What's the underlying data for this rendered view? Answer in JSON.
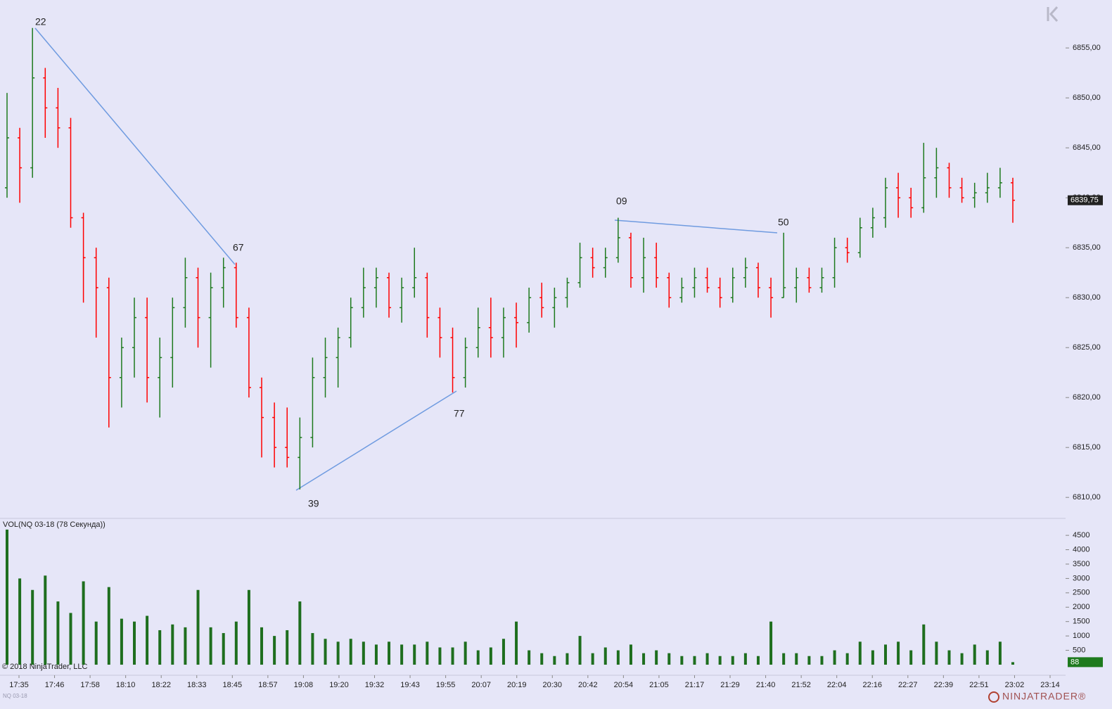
{
  "chart_data": [
    {
      "type": "ohlc",
      "open": [
        6841,
        6846,
        6843,
        6852,
        6849,
        6847,
        6838,
        6834,
        6831,
        6822,
        6825,
        6828,
        6822,
        6824,
        6829,
        6832,
        6828,
        6831,
        6833,
        6828,
        6821,
        6818,
        6815,
        6814,
        6816,
        6822,
        6824,
        6826,
        6829,
        6831,
        6832,
        6829,
        6831,
        6832,
        6828,
        6826,
        6822,
        6825,
        6827,
        6826,
        6828,
        6827.5,
        6830,
        6829,
        6830,
        6831.5,
        6834,
        6833,
        6834,
        6836,
        6832,
        6834,
        6832,
        6830,
        6831,
        6832,
        6831,
        6830,
        6832,
        6833,
        6831,
        6830,
        6831,
        6832,
        6831,
        6832,
        6835,
        6834.5,
        6837,
        6838,
        6841,
        6840,
        6839,
        6842,
        6843,
        6841,
        6840,
        6840.5,
        6841,
        6841.5
      ],
      "high": [
        6850.5,
        6847,
        6857,
        6853,
        6851,
        6848,
        6838.5,
        6835,
        6832,
        6826,
        6830,
        6830,
        6826,
        6830,
        6834,
        6833,
        6832.5,
        6834,
        6833.5,
        6829,
        6822,
        6819.5,
        6819,
        6818,
        6824,
        6826,
        6827,
        6830,
        6833,
        6833,
        6832.5,
        6832,
        6835,
        6832.5,
        6829,
        6827,
        6826,
        6829,
        6830,
        6829,
        6829.5,
        6831,
        6831.5,
        6831,
        6832,
        6835.5,
        6835,
        6835,
        6838,
        6836.5,
        6836,
        6835.5,
        6832.5,
        6832,
        6833,
        6833,
        6832,
        6833,
        6834,
        6833.5,
        6832,
        6836.5,
        6833,
        6833,
        6833,
        6836,
        6836,
        6838,
        6839,
        6842,
        6842.5,
        6841,
        6845.5,
        6845,
        6843.5,
        6842,
        6841.5,
        6842.5,
        6843,
        6842
      ],
      "low": [
        6840,
        6839.5,
        6842,
        6846,
        6845,
        6837,
        6829.5,
        6826,
        6817,
        6819,
        6822,
        6819.5,
        6818,
        6821,
        6827,
        6825,
        6823,
        6829,
        6827,
        6820,
        6814,
        6813,
        6813,
        6810.8,
        6815,
        6820,
        6821,
        6825,
        6828,
        6829,
        6828,
        6827.5,
        6830,
        6826,
        6824,
        6820.5,
        6821,
        6824,
        6824,
        6824,
        6825,
        6826.5,
        6828,
        6827,
        6829,
        6831,
        6832,
        6832,
        6833.5,
        6831,
        6830.5,
        6831,
        6829,
        6829.5,
        6830,
        6830.5,
        6829,
        6829.5,
        6831,
        6830,
        6828,
        6830,
        6829.5,
        6830.5,
        6830.5,
        6831,
        6833.5,
        6834,
        6836,
        6837,
        6838,
        6838,
        6838.5,
        6840,
        6840,
        6839.5,
        6839,
        6839.5,
        6840,
        6837.5
      ],
      "close": [
        6846,
        6843,
        6852,
        6849,
        6847,
        6838,
        6834,
        6831,
        6822,
        6825,
        6828,
        6822,
        6824,
        6829,
        6832,
        6828,
        6831,
        6833,
        6828,
        6821,
        6818,
        6815,
        6814,
        6816,
        6822,
        6824,
        6826,
        6829,
        6831,
        6832,
        6829,
        6831,
        6832,
        6828,
        6826,
        6822,
        6825,
        6827,
        6826,
        6828,
        6827.5,
        6830,
        6829,
        6830,
        6831.5,
        6834,
        6833,
        6834,
        6836,
        6832,
        6834,
        6832,
        6830,
        6831,
        6832,
        6831,
        6830,
        6832,
        6833,
        6831,
        6830,
        6831,
        6832,
        6831,
        6832,
        6835,
        6834.5,
        6837,
        6838,
        6841,
        6840,
        6839,
        6842,
        6843,
        6841,
        6840,
        6840.5,
        6841,
        6841.5,
        6839.75
      ],
      "up_color": "#1e7a1e",
      "down_color": "#ff0000",
      "ylim": [
        6807.9,
        6859.8
      ],
      "yticks": [
        {
          "value": 6810,
          "label": "6810,00"
        },
        {
          "value": 6815,
          "label": "6815,00"
        },
        {
          "value": 6820,
          "label": "6820,00"
        },
        {
          "value": 6825,
          "label": "6825,00"
        },
        {
          "value": 6830,
          "label": "6830,00"
        },
        {
          "value": 6835,
          "label": "6835,00"
        },
        {
          "value": 6840,
          "label": "6840,00"
        },
        {
          "value": 6845,
          "label": "6845,00"
        },
        {
          "value": 6850,
          "label": "6850,00"
        },
        {
          "value": 6855,
          "label": "6855,00"
        }
      ],
      "last_value": 6839.75,
      "last_value_label": "6839,75",
      "annotations": [
        "22",
        "67",
        "39",
        "77",
        "09",
        "50"
      ]
    },
    {
      "type": "bar",
      "title": "VOL(NQ 03-18 (78 Секунда))",
      "color": "#1e6e1e",
      "values": [
        4700,
        3000,
        2600,
        3100,
        2200,
        1800,
        2900,
        1500,
        2700,
        1600,
        1500,
        1700,
        1200,
        1400,
        1300,
        2600,
        1300,
        1100,
        1500,
        2600,
        1300,
        1000,
        1200,
        2200,
        1100,
        900,
        800,
        900,
        800,
        700,
        800,
        700,
        700,
        800,
        600,
        600,
        800,
        500,
        600,
        900,
        1500,
        500,
        400,
        300,
        400,
        1000,
        400,
        600,
        500,
        700,
        400,
        500,
        400,
        300,
        300,
        400,
        300,
        300,
        400,
        300,
        1500,
        400,
        400,
        300,
        300,
        500,
        400,
        800,
        500,
        700,
        800,
        500,
        1400,
        800,
        500,
        400,
        700,
        500,
        800,
        88
      ],
      "ylim": [
        0,
        5090
      ],
      "yticks": [
        500,
        1000,
        1500,
        2000,
        2500,
        3000,
        3500,
        4000,
        4500
      ],
      "last_value": 88,
      "xticks": [
        "17:35",
        "17:46",
        "17:58",
        "18:10",
        "18:22",
        "18:33",
        "18:45",
        "18:57",
        "19:08",
        "19:20",
        "19:32",
        "19:43",
        "19:55",
        "20:07",
        "20:19",
        "20:30",
        "20:42",
        "20:54",
        "21:05",
        "21:17",
        "21:29",
        "21:40",
        "21:52",
        "22:04",
        "22:16",
        "22:27",
        "22:39",
        "22:51",
        "23:02",
        "23:14"
      ]
    }
  ],
  "footer": {
    "copyright": "© 2018 NinjaTrader, LLC",
    "instrument": "NQ 03-18",
    "logo": "NINJATRADER®"
  }
}
